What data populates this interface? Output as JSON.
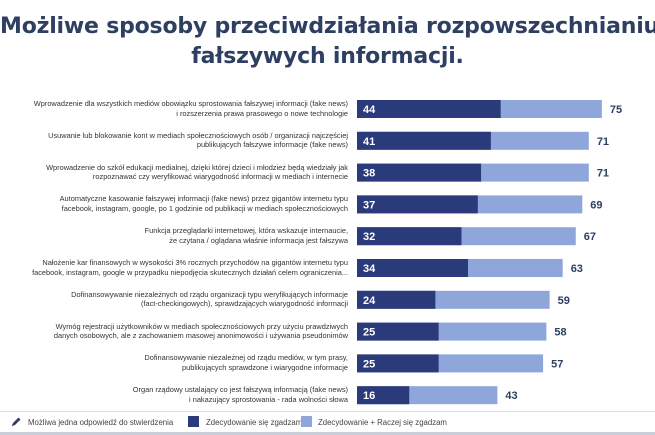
{
  "chart_data": {
    "type": "bar",
    "orientation": "horizontal",
    "stacked": "overlay",
    "title": "Możliwe sposoby przeciwdziałania rozpowszechnianiu fałszywych informacji.",
    "title_lines": [
      "Możliwe sposoby przeciwdziałania rozpowszechnianiu",
      "fałszywych informacji."
    ],
    "xlim": [
      0,
      100
    ],
    "categories": [
      "Wprowadzenie dla wszystkich mediów obowiązku sprostowania fałszywej informacji (fake news) i rozszerzenia prawa prasowego o nowe technologie",
      "Usuwanie lub blokowanie kont w mediach społecznościowych osób / organizacji najczęściej publikujących fałszywe informacje (fake news)",
      "Wprowadzenie do szkół edukacji medialnej, dzięki której dzieci i młodzież będą wiedziały jak rozpoznawać czy weryfikować wiarygodność informacji w mediach i internecie",
      "Automatyczne kasowanie fałszywej informacji (fake news) przez gigantów internetu typu facebook, instagram, google, po 1 godzinie od publikacji w mediach społecznościowych",
      "Funkcja przeglądarki internetowej, która wskazuje internaucie, że czytana / oglądana właśnie informacja jest fałszywa",
      "Nałożenie kar finansowych w wysokości 3% rocznych przychodów na gigantów internetu typu facebook, instagram, google w przypadku niepodjęcia skutecznych działań celem ograniczenia...",
      "Dofinansowywanie niezależnych od rządu organizacji typu weryfikujących informacje (fact-checkingowych), sprawdzających wiarygodność informacji",
      "Wymóg rejestracji użytkowników w mediach społecznościowych przy użyciu prawdziwych danych osobowych, ale z zachowaniem masowej anonimowości i używania pseudonimów",
      "Dofinansowywanie niezależnej od rządu mediów, w tym prasy, publikujących sprawdzone i wiarygodne informacje",
      "Organ rządowy ustalający co jest fałszywą informacją (fake news) i nakazujący sprostowania - rada wolności słowa"
    ],
    "category_lines": [
      [
        "Wprowadzenie dla wszystkich mediów obowiązku sprostowania fałszywej informacji (fake news)",
        "i rozszerzenia prawa prasowego o nowe technologie"
      ],
      [
        "Usuwanie lub blokowanie kont w mediach społecznościowych osób / organizacji najczęściej",
        "publikujących fałszywe informacje (fake news)"
      ],
      [
        "Wprowadzenie do szkół edukacji medialnej, dzięki której dzieci i młodzież będą wiedziały jak",
        "rozpoznawać czy weryfikować wiarygodność informacji w mediach i internecie"
      ],
      [
        "Automatyczne kasowanie fałszywej informacji (fake news) przez gigantów internetu typu",
        "facebook, instagram, google, po 1 godzinie od publikacji w mediach społecznościowych"
      ],
      [
        "Funkcja przeglądarki internetowej, która wskazuje internaucie,",
        "że czytana / oglądana właśnie informacja jest fałszywa"
      ],
      [
        "Nałożenie kar finansowych w wysokości 3% rocznych przychodów na gigantów internetu typu",
        "facebook, instagram, google w przypadku niepodjęcia skutecznych działań celem ograniczenia..."
      ],
      [
        "Dofinansowywanie niezależnych od rządu organizacji typu weryfikujących informacje",
        "(fact-checkingowych), sprawdzających wiarygodność informacji"
      ],
      [
        "Wymóg rejestracji użytkowników w mediach społecznościowych przy użyciu prawdziwych",
        "danych osobowych, ale z zachowaniem masowej anonimowości i używania pseudonimów"
      ],
      [
        "Dofinansowywanie niezależnej od rządu mediów, w tym prasy,",
        "publikujących sprawdzone i wiarygodne informacje"
      ],
      [
        "Organ rządowy ustalający co jest fałszywą informacją (fake news)",
        "i nakazujący sprostowania - rada wolności słowa"
      ]
    ],
    "series": [
      {
        "name": "Zdecydowanie się zgadzam",
        "color": "#2b3a7a",
        "values": [
          44,
          41,
          38,
          37,
          32,
          34,
          24,
          25,
          25,
          16
        ]
      },
      {
        "name": "Zdecydowanie + Raczej się zgadzam",
        "color": "#8ea6d9",
        "values": [
          75,
          71,
          71,
          69,
          67,
          63,
          59,
          58,
          57,
          43
        ]
      }
    ]
  },
  "footer": {
    "note": "Możliwa jedna odpowiedź do stwierdzenia",
    "icon": "pen-icon"
  }
}
